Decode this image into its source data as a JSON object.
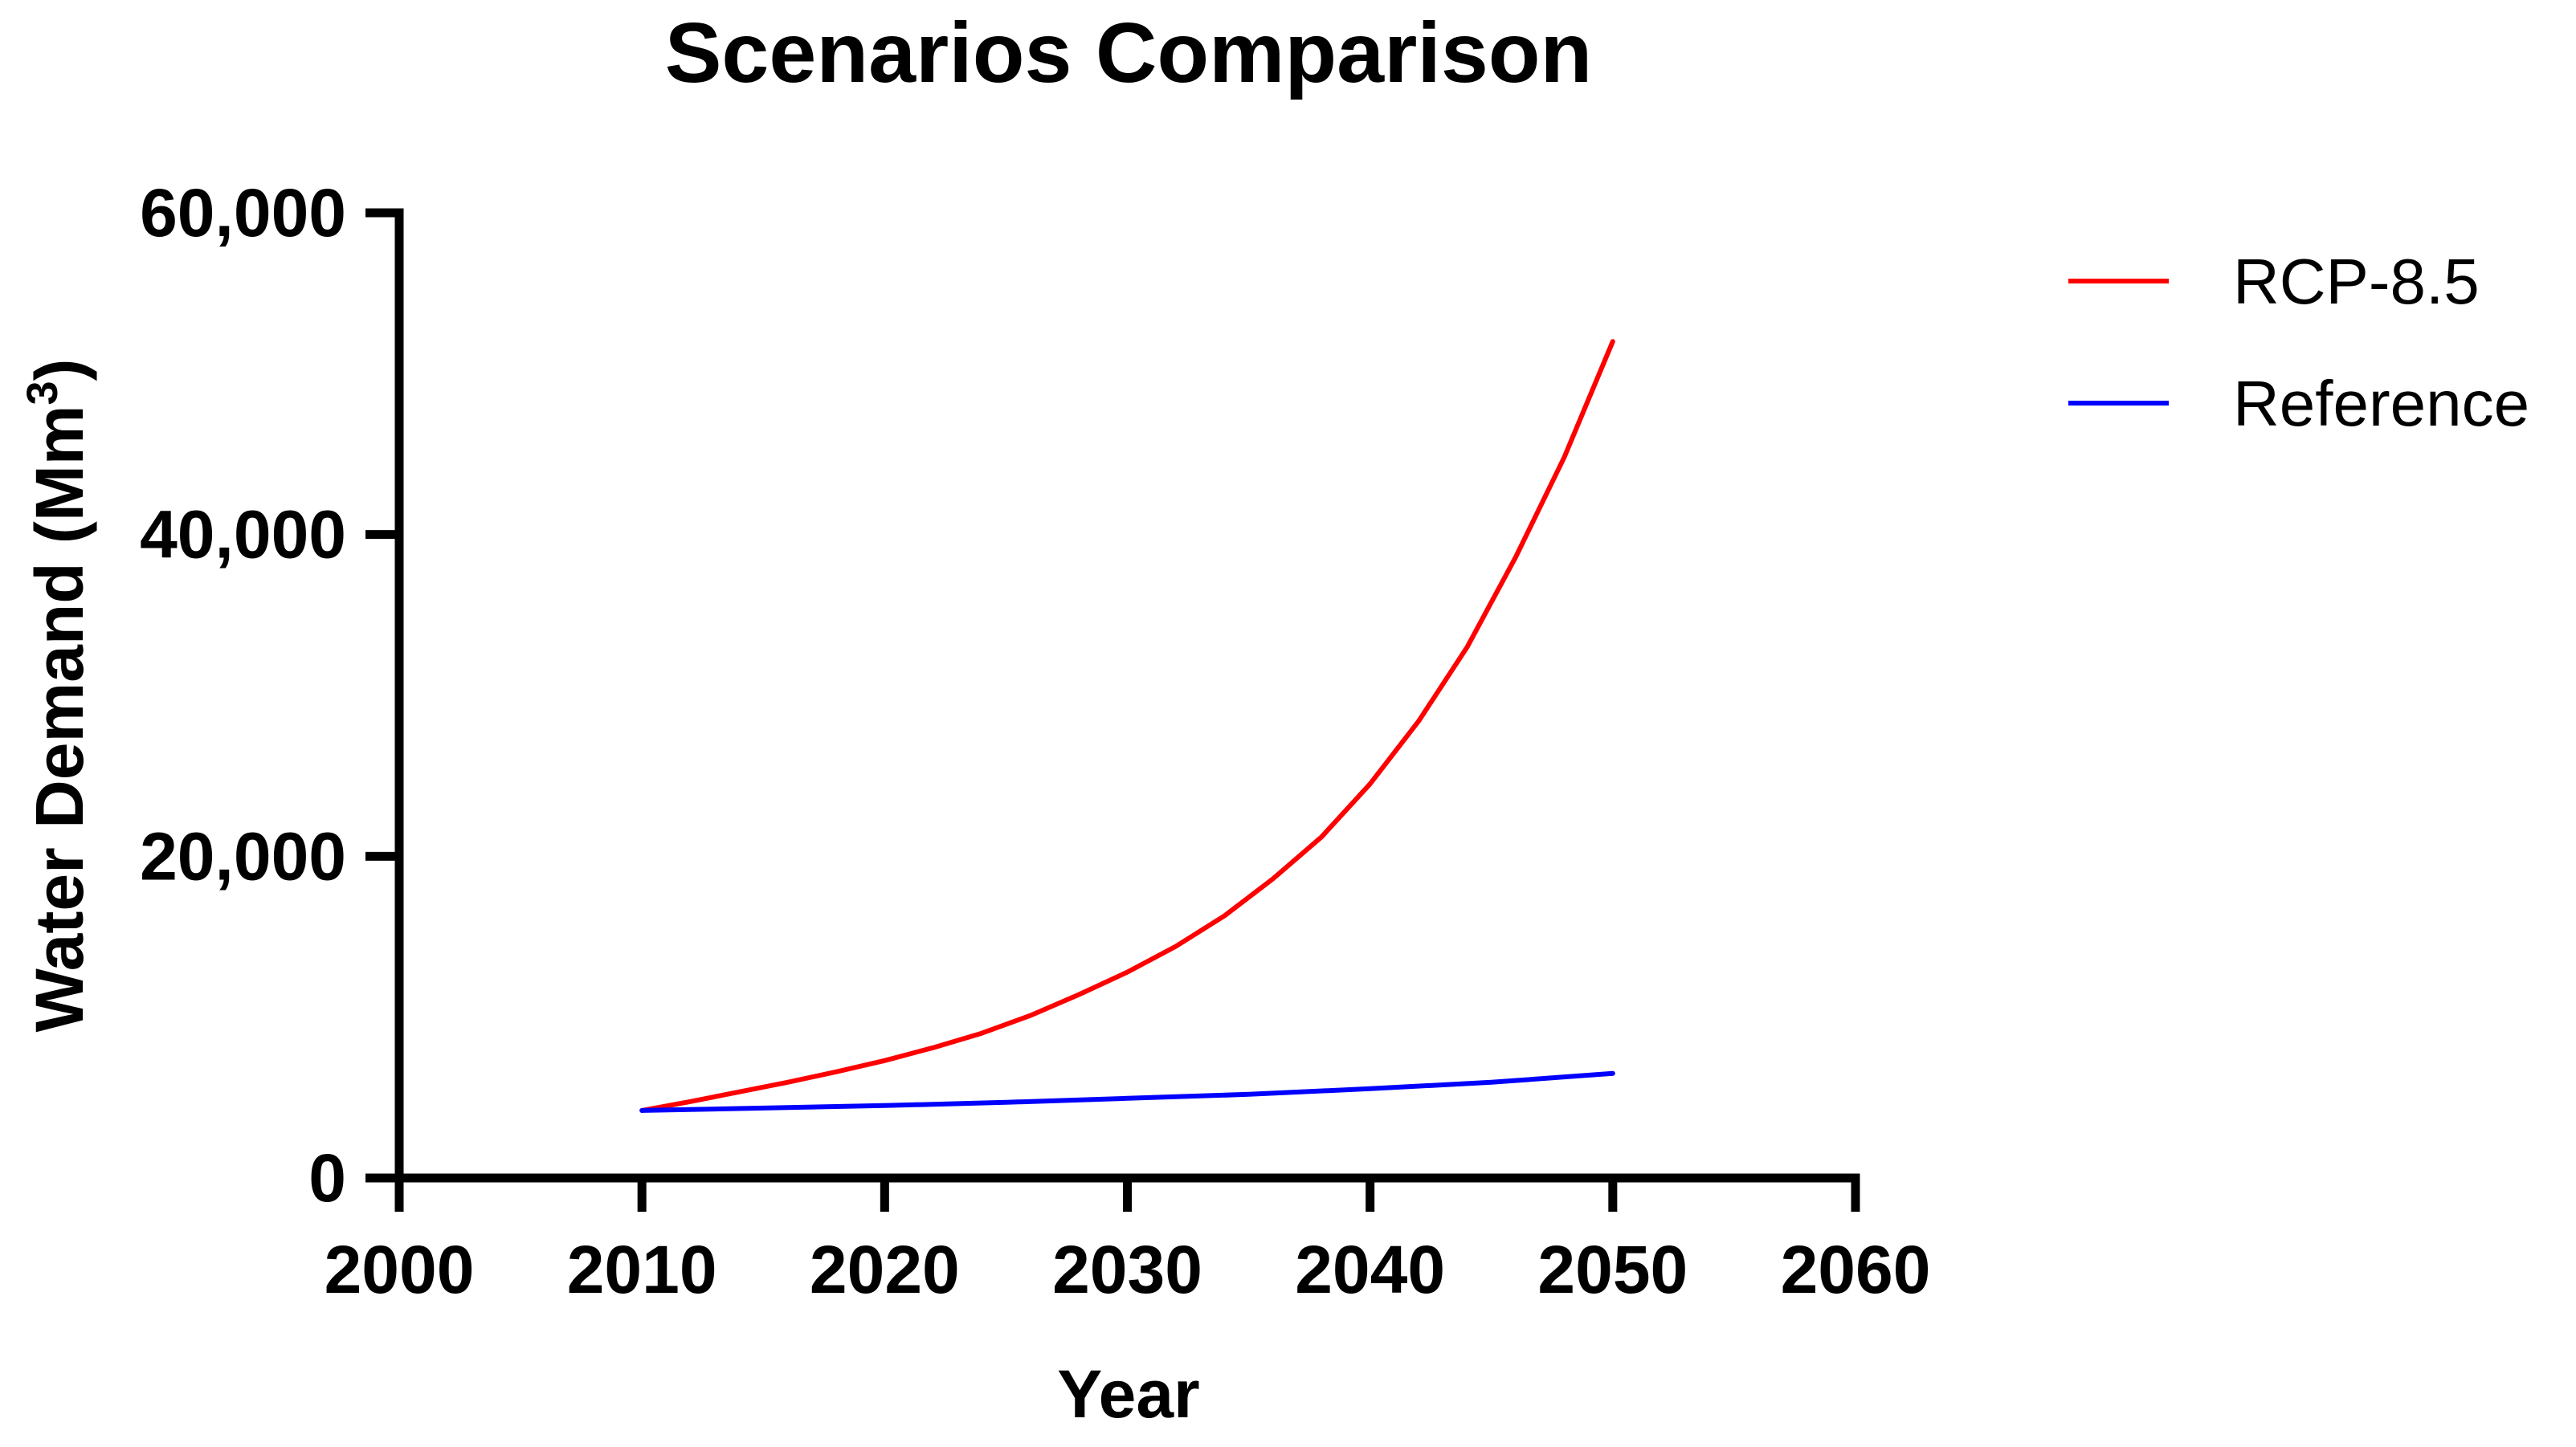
{
  "chart_data": {
    "type": "line",
    "title": "Scenarios Comparison",
    "xlabel": "Year",
    "ylabel": "Water Demand (Mm",
    "ylabel_superscript": "3",
    "ylabel_close": ")",
    "xlim": [
      2000,
      2060
    ],
    "ylim": [
      0,
      60000
    ],
    "x_ticks": [
      2000,
      2010,
      2020,
      2030,
      2040,
      2050,
      2060
    ],
    "x_tick_labels": [
      "2000",
      "2010",
      "2020",
      "2030",
      "2040",
      "2050",
      "2060"
    ],
    "y_ticks": [
      0,
      20000,
      40000,
      60000
    ],
    "y_tick_labels": [
      "0",
      "20,000",
      "40,000",
      "60,000"
    ],
    "grid": false,
    "legend_position": "top-right",
    "series": [
      {
        "name": "RCP-8.5",
        "color": "#ff0000",
        "x": [
          2010,
          2012,
          2014,
          2016,
          2018,
          2020,
          2022,
          2024,
          2026,
          2028,
          2030,
          2032,
          2034,
          2036,
          2038,
          2040,
          2042,
          2044,
          2046,
          2048,
          2050
        ],
        "values": [
          4200,
          4750,
          5350,
          5950,
          6600,
          7300,
          8100,
          9000,
          10100,
          11400,
          12800,
          14400,
          16300,
          18600,
          21200,
          24500,
          28400,
          33000,
          38600,
          44800,
          52000
        ]
      },
      {
        "name": "Reference",
        "color": "#0000ff",
        "x": [
          2010,
          2015,
          2020,
          2025,
          2030,
          2035,
          2040,
          2045,
          2050
        ],
        "values": [
          4200,
          4350,
          4500,
          4700,
          4950,
          5200,
          5550,
          5950,
          6500
        ]
      }
    ]
  }
}
